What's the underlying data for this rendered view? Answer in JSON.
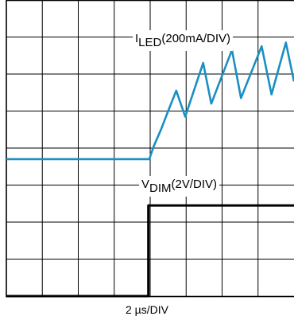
{
  "chart_data": {
    "type": "line",
    "title": "",
    "xlabel": "2 µs/DIV",
    "ylabel": "",
    "grid": true,
    "x_divisions": 8,
    "y_divisions": 8,
    "xlim": [
      0,
      16
    ],
    "x_unit": "µs",
    "series": [
      {
        "name": "ILED",
        "label_main": "I",
        "label_sub": "LED",
        "label_rest": "(200mA/DIV)",
        "scale": "200mA/DIV",
        "color": "#1a8fc4",
        "y_div": [
          [
            0.0,
            3.7
          ],
          [
            7.95,
            3.7
          ],
          [
            8.2,
            4.05
          ],
          [
            8.6,
            4.5
          ],
          [
            9.0,
            5.0
          ],
          [
            9.45,
            5.55
          ],
          [
            9.95,
            4.85
          ],
          [
            10.95,
            6.3
          ],
          [
            11.4,
            5.2
          ],
          [
            12.55,
            6.65
          ],
          [
            13.05,
            5.35
          ],
          [
            14.2,
            6.75
          ],
          [
            14.75,
            5.45
          ],
          [
            15.55,
            6.85
          ],
          [
            16.0,
            5.8
          ]
        ]
      },
      {
        "name": "VDIM",
        "label_main": "V",
        "label_sub": "DIM",
        "label_rest": "(2V/DIV)",
        "scale": "2V/DIV",
        "color": "#000000",
        "y_div": [
          [
            0.0,
            0.0
          ],
          [
            7.9,
            0.0
          ],
          [
            7.9,
            2.45
          ],
          [
            16.0,
            2.45
          ]
        ]
      }
    ]
  }
}
